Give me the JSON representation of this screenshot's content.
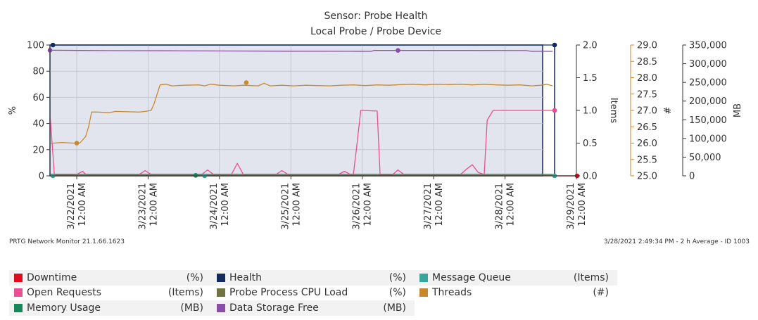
{
  "title": "Sensor: Probe Health",
  "subtitle": "Local Probe / Probe Device",
  "footer_left": "PRTG Network Monitor 21.1.66.1623",
  "footer_right": "3/28/2021 2:49:34 PM - 2 h Average - ID 1003",
  "legend": [
    {
      "name": "Downtime",
      "unit": "(%)",
      "color": "#e00b1c"
    },
    {
      "name": "Health",
      "unit": "(%)",
      "color": "#122a5e"
    },
    {
      "name": "Message Queue",
      "unit": "(Items)",
      "color": "#3aa59c"
    },
    {
      "name": "Open Requests",
      "unit": "(Items)",
      "color": "#e94f91"
    },
    {
      "name": "Probe Process CPU Load",
      "unit": "(%)",
      "color": "#6f7440"
    },
    {
      "name": "Threads",
      "unit": "(#)",
      "color": "#c8892d"
    },
    {
      "name": "Memory Usage",
      "unit": "(MB)",
      "color": "#17865a"
    },
    {
      "name": "Data Storage Free",
      "unit": "(MB)",
      "color": "#8a4ea8"
    }
  ],
  "chart_data": {
    "type": "line",
    "title": "Sensor: Probe Health",
    "subtitle": "Local Probe / Probe Device",
    "x_range": [
      "3/21/2021 3:00 PM",
      "3/29/2021 12:00 AM"
    ],
    "x_ticks": [
      {
        "date": "3/22/2021",
        "time": "12:00 AM"
      },
      {
        "date": "3/23/2021",
        "time": "12:00 AM"
      },
      {
        "date": "3/24/2021",
        "time": "12:00 AM"
      },
      {
        "date": "3/25/2021",
        "time": "12:00 AM"
      },
      {
        "date": "3/26/2021",
        "time": "12:00 AM"
      },
      {
        "date": "3/27/2021",
        "time": "12:00 AM"
      },
      {
        "date": "3/28/2021",
        "time": "12:00 AM"
      },
      {
        "date": "3/29/2021",
        "time": "12:00 AM"
      }
    ],
    "axes": [
      {
        "id": "pct",
        "title": "%",
        "side": "left",
        "range": [
          0,
          100
        ],
        "ticks": [
          "0",
          "20",
          "40",
          "60",
          "80",
          "100"
        ]
      },
      {
        "id": "items",
        "title": "Items",
        "side": "right",
        "range": [
          0,
          2
        ],
        "ticks": [
          "0.0",
          "0.5",
          "1.0",
          "1.5",
          "2.0"
        ]
      },
      {
        "id": "threads",
        "title": "#",
        "side": "right",
        "range": [
          25,
          29
        ],
        "ticks": [
          "25.0",
          "25.5",
          "26.0",
          "26.5",
          "27.0",
          "27.5",
          "28.0",
          "28.5",
          "29.0"
        ]
      },
      {
        "id": "mb",
        "title": "MB",
        "side": "right",
        "range": [
          0,
          350000
        ],
        "ticks": [
          "0",
          "50,000",
          "100,000",
          "150,000",
          "200,000",
          "250,000",
          "300,000",
          "350,000"
        ]
      }
    ],
    "grid": true,
    "legend_position": "bottom",
    "series": [
      {
        "name": "Health",
        "axis": "pct",
        "color": "#122a5e",
        "points": [
          [
            0,
            100
          ],
          [
            169,
            100
          ]
        ]
      },
      {
        "name": "Data Storage Free",
        "axis": "mb",
        "color": "#8a4ea8",
        "points": [
          [
            0,
            336000
          ],
          [
            10,
            335500
          ],
          [
            20,
            335000
          ],
          [
            40,
            334500
          ],
          [
            60,
            334000
          ],
          [
            80,
            333500
          ],
          [
            100,
            333200
          ],
          [
            108,
            333000
          ],
          [
            109,
            335500
          ],
          [
            120,
            335500
          ],
          [
            140,
            335500
          ],
          [
            160,
            335200
          ],
          [
            162,
            333000
          ],
          [
            169,
            333000
          ]
        ]
      },
      {
        "name": "Threads",
        "axis": "threads",
        "color": "#c8892d",
        "points": [
          [
            0,
            26.0
          ],
          [
            1,
            26.0
          ],
          [
            4,
            26.02
          ],
          [
            8,
            26.0
          ],
          [
            10,
            26.0
          ],
          [
            12,
            26.2
          ],
          [
            13,
            26.5
          ],
          [
            14,
            26.95
          ],
          [
            16,
            26.95
          ],
          [
            20,
            26.93
          ],
          [
            22,
            26.97
          ],
          [
            26,
            26.96
          ],
          [
            30,
            26.95
          ],
          [
            32,
            26.97
          ],
          [
            34,
            27.0
          ],
          [
            35,
            27.2
          ],
          [
            37,
            27.78
          ],
          [
            39,
            27.8
          ],
          [
            41,
            27.75
          ],
          [
            45,
            27.77
          ],
          [
            50,
            27.78
          ],
          [
            52,
            27.75
          ],
          [
            54,
            27.8
          ],
          [
            57,
            27.77
          ],
          [
            62,
            27.75
          ],
          [
            65,
            27.77
          ],
          [
            70,
            27.75
          ],
          [
            72,
            27.83
          ],
          [
            74,
            27.75
          ],
          [
            78,
            27.77
          ],
          [
            82,
            27.75
          ],
          [
            86,
            27.77
          ],
          [
            90,
            27.76
          ],
          [
            94,
            27.75
          ],
          [
            98,
            27.77
          ],
          [
            102,
            27.78
          ],
          [
            106,
            27.76
          ],
          [
            110,
            27.78
          ],
          [
            114,
            27.77
          ],
          [
            118,
            27.79
          ],
          [
            122,
            27.8
          ],
          [
            126,
            27.78
          ],
          [
            130,
            27.8
          ],
          [
            134,
            27.79
          ],
          [
            138,
            27.8
          ],
          [
            142,
            27.78
          ],
          [
            146,
            27.8
          ],
          [
            150,
            27.78
          ],
          [
            154,
            27.77
          ],
          [
            158,
            27.78
          ],
          [
            162,
            27.75
          ],
          [
            165,
            27.77
          ],
          [
            167,
            27.8
          ],
          [
            169,
            27.75
          ]
        ]
      },
      {
        "name": "Open Requests",
        "axis": "items",
        "color": "#e94f91",
        "points": [
          [
            0,
            0.95
          ],
          [
            1.5,
            0.01
          ],
          [
            9,
            0.02
          ],
          [
            11,
            0.07
          ],
          [
            12,
            0.02
          ],
          [
            30,
            0.02
          ],
          [
            32,
            0.08
          ],
          [
            34,
            0.02
          ],
          [
            51,
            0.02
          ],
          [
            53,
            0.09
          ],
          [
            55,
            0.02
          ],
          [
            61,
            0.02
          ],
          [
            63,
            0.19
          ],
          [
            65,
            0.02
          ],
          [
            76,
            0.02
          ],
          [
            78,
            0.08
          ],
          [
            80,
            0.02
          ],
          [
            97,
            0.02
          ],
          [
            99,
            0.07
          ],
          [
            101,
            0.02
          ],
          [
            102,
            0.02
          ],
          [
            103,
            0.4
          ],
          [
            104.5,
            1.0
          ],
          [
            110,
            0.99
          ],
          [
            111,
            0.01
          ],
          [
            115,
            0.01
          ],
          [
            117,
            0.09
          ],
          [
            119,
            0.02
          ],
          [
            138,
            0.02
          ],
          [
            140,
            0.1
          ],
          [
            142,
            0.17
          ],
          [
            144,
            0.05
          ],
          [
            146,
            0.02
          ],
          [
            147,
            0.85
          ],
          [
            149,
            1.0
          ],
          [
            169,
            1.0
          ]
        ]
      },
      {
        "name": "Probe Process CPU Load",
        "axis": "pct",
        "color": "#6f7440",
        "points": [
          [
            0,
            1.2
          ],
          [
            169,
            1.2
          ]
        ]
      },
      {
        "name": "Memory Usage",
        "axis": "mb",
        "color": "#17865a",
        "points": [
          [
            0,
            1200
          ],
          [
            169,
            1200
          ]
        ]
      },
      {
        "name": "Message Queue",
        "axis": "items",
        "color": "#3aa59c",
        "points": [
          [
            0,
            0
          ],
          [
            169,
            0
          ]
        ]
      },
      {
        "name": "Downtime",
        "axis": "pct",
        "color": "#e00b1c",
        "points": [
          [
            0,
            0
          ],
          [
            169,
            0
          ]
        ]
      }
    ]
  }
}
